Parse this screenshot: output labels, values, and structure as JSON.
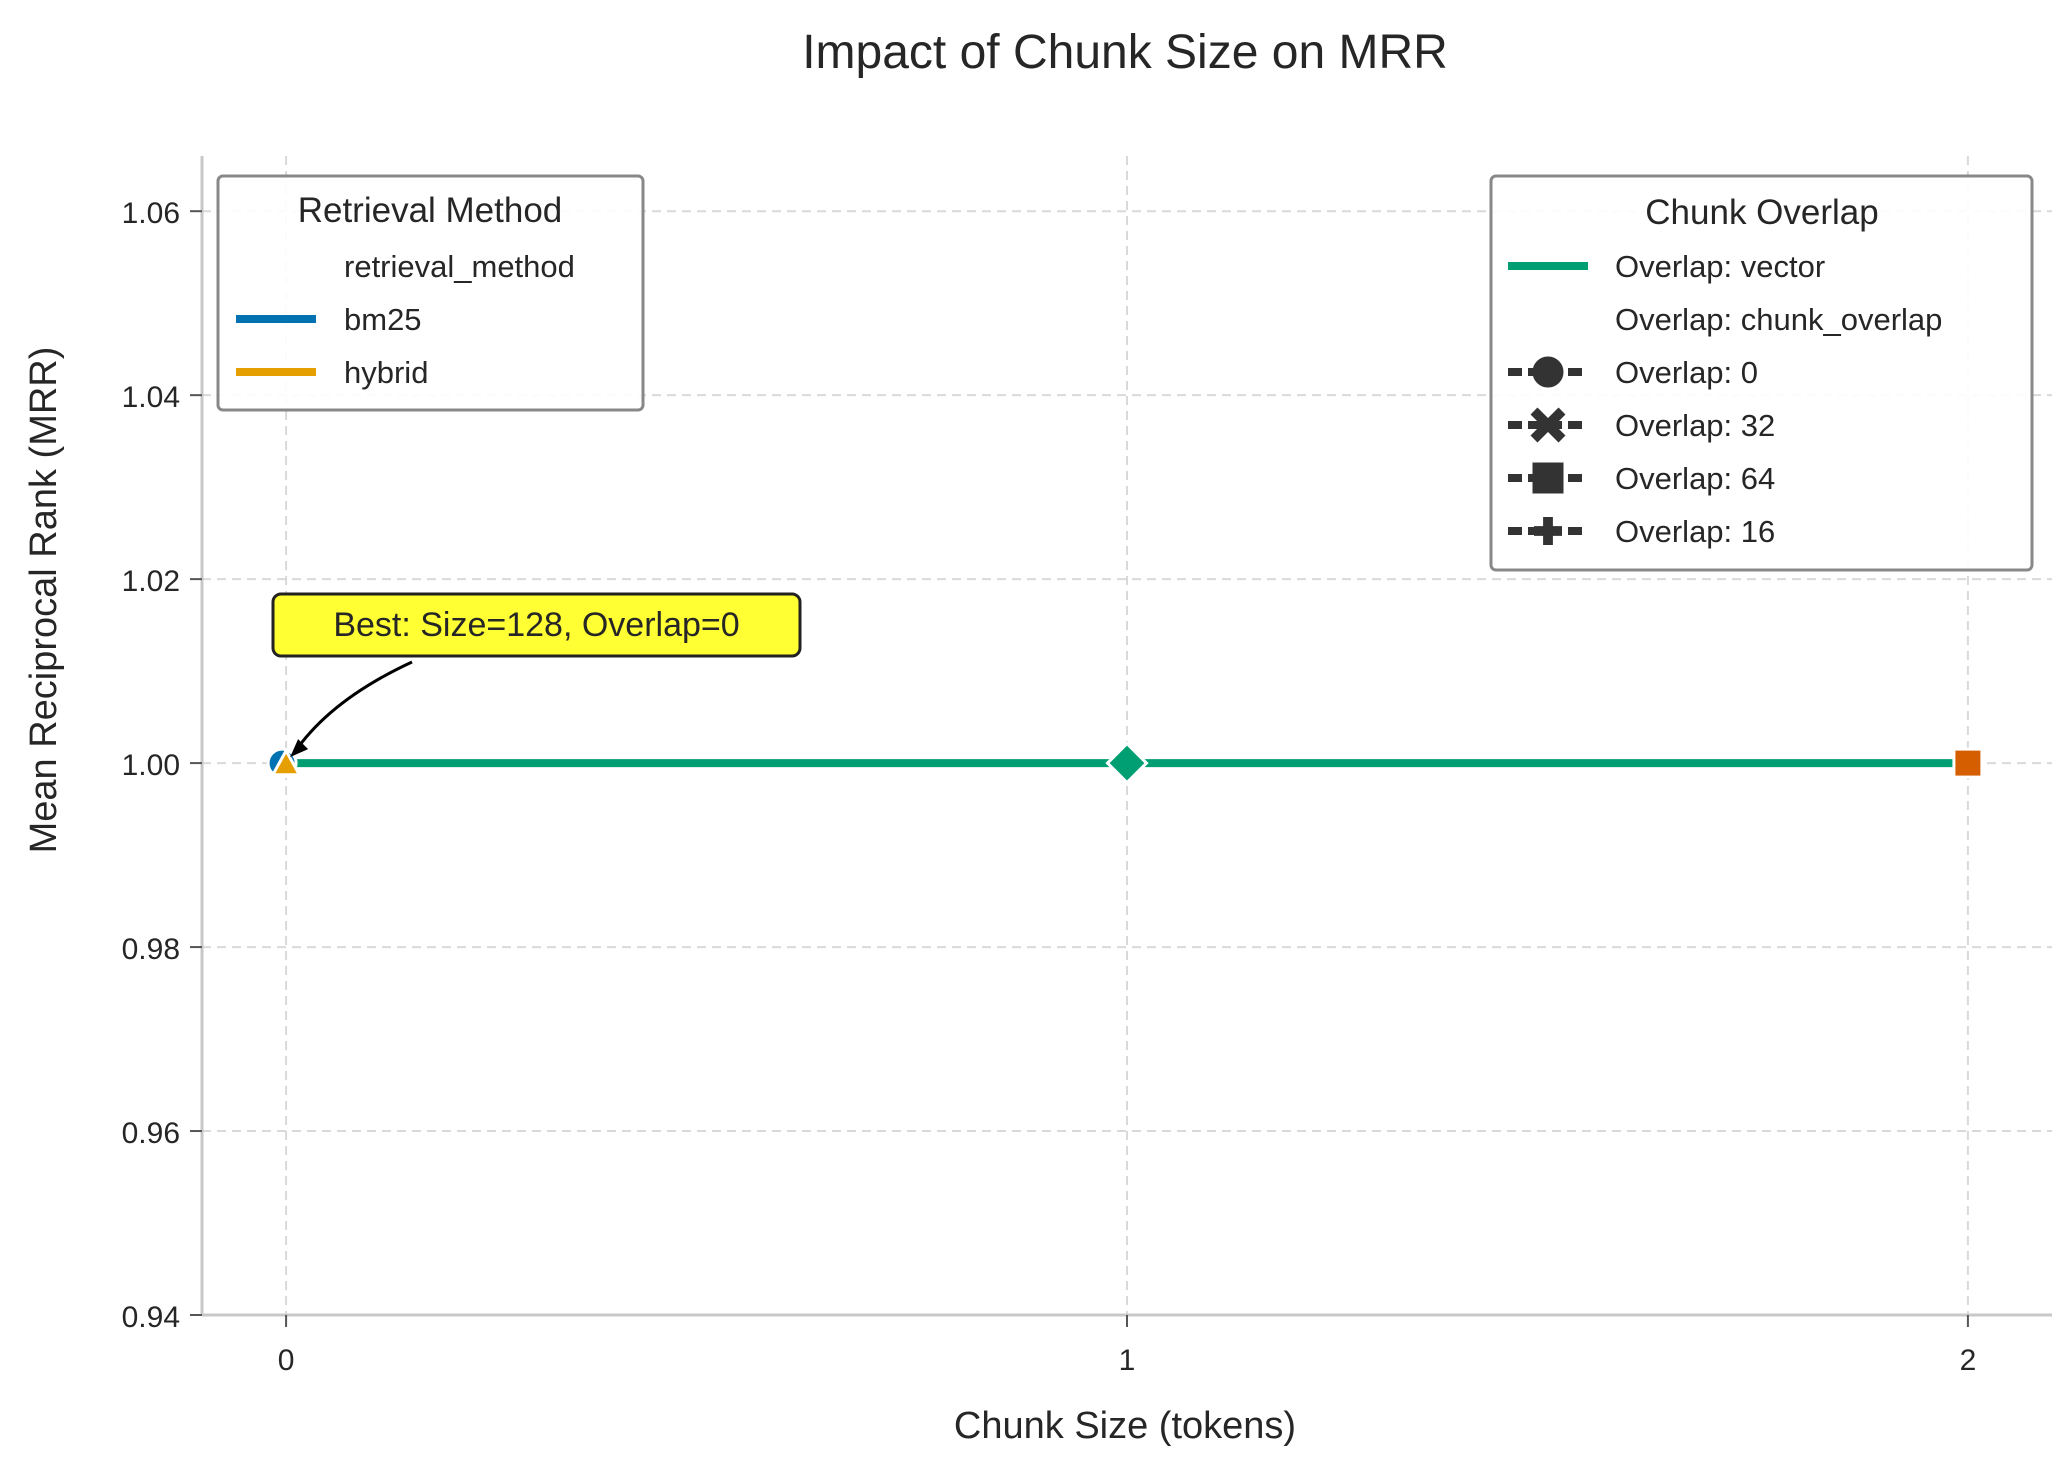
{
  "chart_data": {
    "type": "line",
    "title": "Impact of Chunk Size on MRR",
    "xlabel": "Chunk Size (tokens)",
    "ylabel": "Mean Reciprocal Rank (MRR)",
    "x_ticks": [
      "0",
      "1",
      "2"
    ],
    "y_ticks": [
      "0.94",
      "0.96",
      "0.98",
      "1.00",
      "1.02",
      "1.04",
      "1.06"
    ],
    "xlim": [
      -0.1,
      2.1
    ],
    "ylim": [
      0.94,
      1.066
    ],
    "grid": true,
    "series": [
      {
        "name": "bm25",
        "color": "#0072b2",
        "marker": "circle",
        "x": [
          0
        ],
        "y": [
          1.0
        ]
      },
      {
        "name": "hybrid",
        "color": "#e69f00",
        "marker": "triangle",
        "x": [
          0
        ],
        "y": [
          1.0
        ]
      },
      {
        "name": "vector",
        "color": "#009e73",
        "marker": "diamond",
        "x": [
          0,
          1,
          2
        ],
        "y": [
          1.0,
          1.0,
          1.0
        ]
      }
    ],
    "extra_points": [
      {
        "x": 2,
        "y": 1.0,
        "color": "#d55e00",
        "marker": "square"
      }
    ],
    "annotation": {
      "text": "Best: Size=128, Overlap=0",
      "x": 0,
      "y": 1.0
    },
    "legend_method": {
      "title": "Retrieval Method",
      "placement": "top-left",
      "entries": [
        {
          "label": "retrieval_method",
          "color": null
        },
        {
          "label": "bm25",
          "color": "#0072b2"
        },
        {
          "label": "hybrid",
          "color": "#e69f00"
        }
      ]
    },
    "legend_overlap": {
      "title": "Chunk Overlap",
      "placement": "top-right",
      "entries": [
        {
          "label": "Overlap: vector",
          "kind": "line",
          "color": "#009e73"
        },
        {
          "label": "Overlap: chunk_overlap",
          "kind": "blank"
        },
        {
          "label": "Overlap: 0",
          "kind": "circle",
          "color": "#333333"
        },
        {
          "label": "Overlap: 32",
          "kind": "x",
          "color": "#333333"
        },
        {
          "label": "Overlap: 64",
          "kind": "square",
          "color": "#333333"
        },
        {
          "label": "Overlap: 16",
          "kind": "plus",
          "color": "#333333"
        }
      ]
    }
  }
}
